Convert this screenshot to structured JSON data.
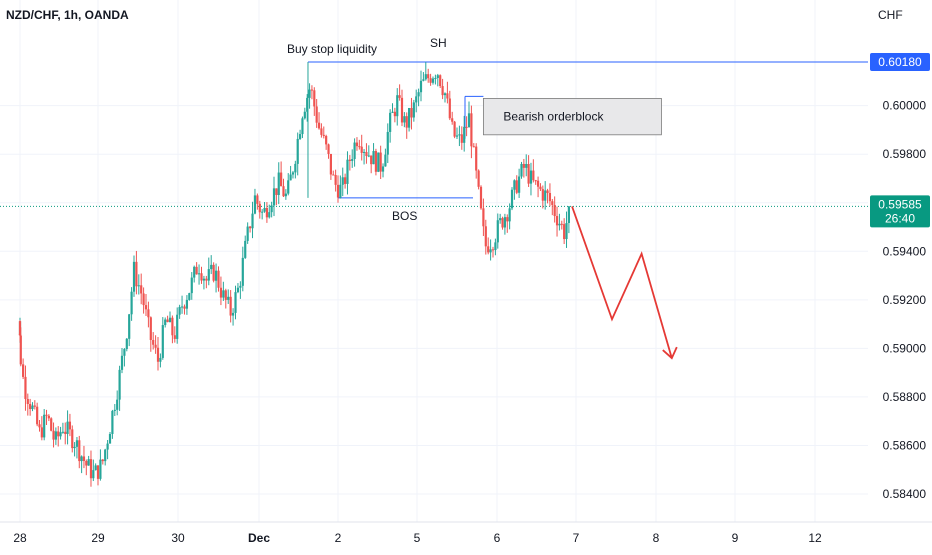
{
  "header": {
    "symbol_title": "NZD/CHF, 1h, OANDA",
    "currency": "CHF"
  },
  "colors": {
    "up": "#26a69a",
    "down": "#ef5350",
    "grid": "#f0f3fa",
    "axis_text": "#131722",
    "annotation_line": "#2962ff",
    "projection": "#e53935",
    "current_price": "#089981",
    "orderblock_fill": "#e8e8ea",
    "orderblock_border": "#7a7a7a"
  },
  "chart_data": {
    "type": "candlestick",
    "symbol": "NZD/CHF",
    "timeframe": "1h",
    "source": "OANDA",
    "grid": true,
    "y_axis": {
      "side": "right",
      "range": [
        0.5834,
        0.6022
      ],
      "ticks": [
        0.584,
        0.586,
        0.588,
        0.59,
        0.592,
        0.594,
        0.596,
        0.598,
        0.6
      ],
      "tick_labels": [
        "0.58400",
        "0.58600",
        "0.58800",
        "0.59000",
        "0.59200",
        "0.59400",
        "0.59600",
        "0.59800",
        "0.60000"
      ]
    },
    "x_axis": {
      "range": [
        27.85,
        12.45
      ],
      "ticks": [
        {
          "label": "28",
          "x": 28.0,
          "bold": false
        },
        {
          "label": "29",
          "x": 29.0,
          "bold": false
        },
        {
          "label": "30",
          "x": 30.0,
          "bold": false
        },
        {
          "label": "Dec",
          "x": 31.0,
          "bold": true
        },
        {
          "label": "2",
          "x": 32.0,
          "bold": false
        },
        {
          "label": "5",
          "x": 33.0,
          "bold": false
        },
        {
          "label": "6",
          "x": 34.0,
          "bold": false
        },
        {
          "label": "7",
          "x": 35.0,
          "bold": false
        },
        {
          "label": "8",
          "x": 36.0,
          "bold": false
        },
        {
          "label": "9",
          "x": 37.0,
          "bold": false
        },
        {
          "label": "12",
          "x": 38.0,
          "bold": false
        }
      ]
    },
    "price_path": [
      {
        "d": 27.86,
        "p": 0.5906
      },
      {
        "d": 27.95,
        "p": 0.5912
      },
      {
        "d": 28.05,
        "p": 0.5885
      },
      {
        "d": 28.15,
        "p": 0.5876
      },
      {
        "d": 28.25,
        "p": 0.5865
      },
      {
        "d": 28.35,
        "p": 0.5872
      },
      {
        "d": 28.45,
        "p": 0.5861
      },
      {
        "d": 28.55,
        "p": 0.5868
      },
      {
        "d": 28.7,
        "p": 0.5862
      },
      {
        "d": 28.85,
        "p": 0.5852
      },
      {
        "d": 28.95,
        "p": 0.5848
      },
      {
        "d": 29.05,
        "p": 0.5852
      },
      {
        "d": 29.15,
        "p": 0.5868
      },
      {
        "d": 29.25,
        "p": 0.5885
      },
      {
        "d": 29.35,
        "p": 0.5905
      },
      {
        "d": 29.45,
        "p": 0.5932
      },
      {
        "d": 29.55,
        "p": 0.5922
      },
      {
        "d": 29.65,
        "p": 0.5905
      },
      {
        "d": 29.75,
        "p": 0.5895
      },
      {
        "d": 29.85,
        "p": 0.5912
      },
      {
        "d": 29.95,
        "p": 0.5905
      },
      {
        "d": 30.05,
        "p": 0.5918
      },
      {
        "d": 30.15,
        "p": 0.5925
      },
      {
        "d": 30.25,
        "p": 0.5935
      },
      {
        "d": 30.35,
        "p": 0.5928
      },
      {
        "d": 30.45,
        "p": 0.5932
      },
      {
        "d": 30.55,
        "p": 0.5922
      },
      {
        "d": 30.65,
        "p": 0.5915
      },
      {
        "d": 30.75,
        "p": 0.5925
      },
      {
        "d": 30.85,
        "p": 0.5945
      },
      {
        "d": 30.95,
        "p": 0.5962
      },
      {
        "d": 31.05,
        "p": 0.5955
      },
      {
        "d": 31.15,
        "p": 0.5962
      },
      {
        "d": 31.25,
        "p": 0.5968
      },
      {
        "d": 31.35,
        "p": 0.5962
      },
      {
        "d": 31.45,
        "p": 0.5978
      },
      {
        "d": 31.55,
        "p": 0.5998
      },
      {
        "d": 31.65,
        "p": 0.6008
      },
      {
        "d": 31.75,
        "p": 0.5992
      },
      {
        "d": 31.85,
        "p": 0.5982
      },
      {
        "d": 31.95,
        "p": 0.5968
      },
      {
        "d": 32.05,
        "p": 0.5965
      },
      {
        "d": 32.15,
        "p": 0.5978
      },
      {
        "d": 32.25,
        "p": 0.5988
      },
      {
        "d": 32.35,
        "p": 0.5982
      },
      {
        "d": 32.45,
        "p": 0.5978
      },
      {
        "d": 32.55,
        "p": 0.5975
      },
      {
        "d": 32.65,
        "p": 0.5992
      },
      {
        "d": 32.75,
        "p": 0.6002
      },
      {
        "d": 32.85,
        "p": 0.5992
      },
      {
        "d": 32.95,
        "p": 0.5998
      },
      {
        "d": 33.05,
        "p": 0.6008
      },
      {
        "d": 33.15,
        "p": 0.6012
      },
      {
        "d": 33.25,
        "p": 0.6015
      },
      {
        "d": 33.35,
        "p": 0.6005
      },
      {
        "d": 33.45,
        "p": 0.5988
      },
      {
        "d": 33.55,
        "p": 0.5985
      },
      {
        "d": 33.65,
        "p": 0.5995
      },
      {
        "d": 33.75,
        "p": 0.5968
      },
      {
        "d": 33.85,
        "p": 0.5942
      },
      {
        "d": 33.95,
        "p": 0.5945
      },
      {
        "d": 34.05,
        "p": 0.5952
      },
      {
        "d": 34.15,
        "p": 0.5958
      },
      {
        "d": 34.25,
        "p": 0.5968
      },
      {
        "d": 34.35,
        "p": 0.5975
      },
      {
        "d": 34.45,
        "p": 0.5968
      },
      {
        "d": 34.55,
        "p": 0.5965
      },
      {
        "d": 34.65,
        "p": 0.5962
      },
      {
        "d": 34.75,
        "p": 0.5955
      },
      {
        "d": 34.85,
        "p": 0.5948
      },
      {
        "d": 34.93,
        "p": 0.59585
      }
    ],
    "current_price": {
      "value": 0.59585,
      "label": "0.59585",
      "countdown": "26:40"
    },
    "levels": [
      {
        "name": "Buy stop liquidity",
        "price": 0.6018,
        "axis_label": "0.60180"
      },
      {
        "name": "BOS",
        "price": 0.5962
      }
    ],
    "annotations": {
      "buy_stop": "Buy stop liquidity",
      "sh": "SH",
      "orderblock": "Bearish orderblock",
      "bos": "BOS"
    },
    "orderblock_zone": {
      "price_top": 0.6003,
      "price_bottom": 0.5988
    },
    "projection": [
      {
        "d": 34.95,
        "p": 0.59585
      },
      {
        "d": 35.45,
        "p": 0.5912
      },
      {
        "d": 35.82,
        "p": 0.5939
      },
      {
        "d": 36.2,
        "p": 0.5896
      }
    ]
  }
}
